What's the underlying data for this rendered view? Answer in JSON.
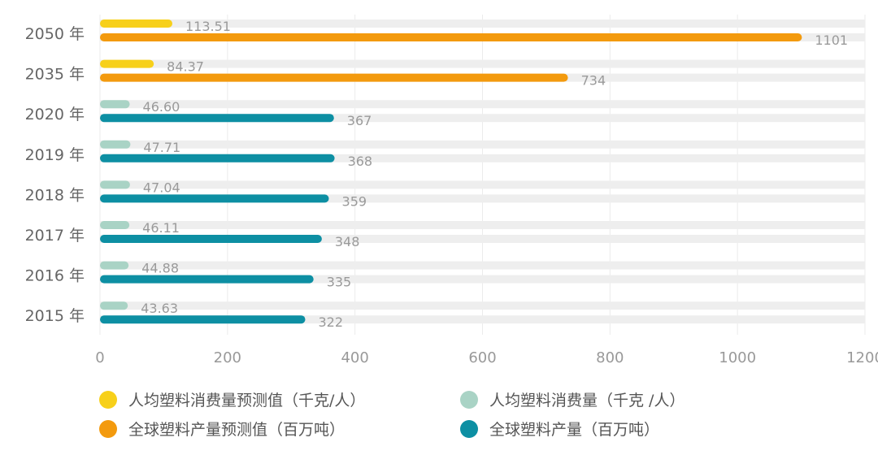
{
  "chart_data": {
    "type": "bar",
    "orientation": "horizontal",
    "categories": [
      "2050 年",
      "2035 年",
      "2020 年",
      "2019 年",
      "2018 年",
      "2017 年",
      "2016 年",
      "2015 年"
    ],
    "series": [
      {
        "name": "人均塑料消费量预测值（千克/人）",
        "color": "#f7d01a",
        "values": [
          113.51,
          84.37,
          null,
          null,
          null,
          null,
          null,
          null
        ],
        "labels": [
          "113.51",
          "84.37",
          "",
          "",
          "",
          "",
          "",
          ""
        ]
      },
      {
        "name": "全球塑料产量预测值（百万吨）",
        "color": "#f39a0e",
        "values": [
          1101,
          734,
          null,
          null,
          null,
          null,
          null,
          null
        ],
        "labels": [
          "1101",
          "734",
          "",
          "",
          "",
          "",
          "",
          ""
        ]
      },
      {
        "name": "人均塑料消费量（千克 /人）",
        "color": "#a9d3c5",
        "values": [
          null,
          null,
          46.6,
          47.71,
          47.04,
          46.11,
          44.88,
          43.63
        ],
        "labels": [
          "",
          "",
          "46.60",
          "47.71",
          "47.04",
          "46.11",
          "44.88",
          "43.63"
        ]
      },
      {
        "name": "全球塑料产量（百万吨）",
        "color": "#0d8fa3",
        "values": [
          null,
          null,
          367,
          368,
          359,
          348,
          335,
          322
        ],
        "labels": [
          "",
          "",
          "367",
          "368",
          "359",
          "348",
          "335",
          "322"
        ]
      }
    ],
    "xlim": [
      0,
      1200
    ],
    "xticks": [
      "0",
      "200",
      "400",
      "600",
      "800",
      "1000",
      "1200"
    ],
    "grid": true,
    "legend_placement": "bottom"
  }
}
